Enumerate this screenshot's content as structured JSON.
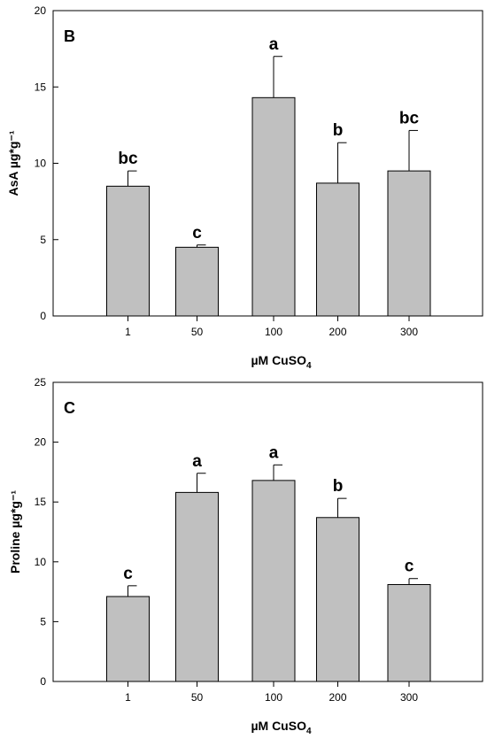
{
  "chart_data": [
    {
      "type": "bar",
      "panel_label": "B",
      "categories": [
        "1",
        "50",
        "100",
        "200",
        "300"
      ],
      "values": [
        8.5,
        4.5,
        14.3,
        8.7,
        9.5
      ],
      "errors": [
        1.0,
        0.15,
        2.7,
        2.65,
        2.65
      ],
      "significance": [
        "bc",
        "c",
        "a",
        "b",
        "bc"
      ],
      "ylabel": "AsA µg*g⁻¹",
      "xlabel": {
        "base": "µM CuSO",
        "sub": "4"
      },
      "ylim": [
        0,
        20
      ],
      "yticks": [
        0,
        5,
        10,
        15,
        20
      ],
      "bar_color": "#c0c0c0",
      "grid": false
    },
    {
      "type": "bar",
      "panel_label": "C",
      "categories": [
        "1",
        "50",
        "100",
        "200",
        "300"
      ],
      "values": [
        7.1,
        15.8,
        16.8,
        13.7,
        8.1
      ],
      "errors": [
        0.9,
        1.6,
        1.3,
        1.6,
        0.5
      ],
      "significance": [
        "c",
        "a",
        "a",
        "b",
        "c"
      ],
      "ylabel": "Proline µg*g⁻¹",
      "xlabel": {
        "base": "µM CuSO",
        "sub": "4"
      },
      "ylim": [
        0,
        25
      ],
      "yticks": [
        0,
        5,
        10,
        15,
        20,
        25
      ],
      "bar_color": "#c0c0c0",
      "grid": false
    }
  ]
}
